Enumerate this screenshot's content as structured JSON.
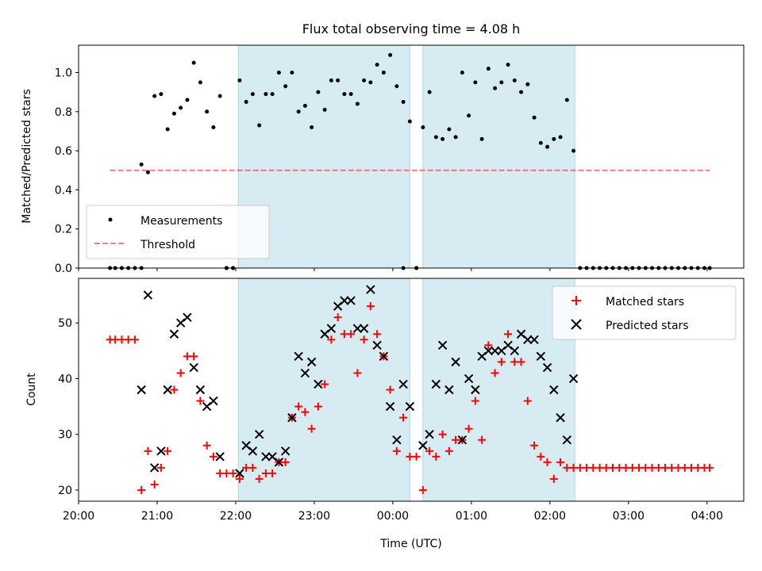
{
  "title": "Flux total observing time = 4.08 h",
  "colors": {
    "span": "#add8e6",
    "measurement": "#000000",
    "threshold": "#ff0000",
    "matched": "#ff0000",
    "predicted": "#000000"
  },
  "chart_data": [
    {
      "type": "scatter",
      "ylabel": "Matched/Predicted stars",
      "xlim": [
        "20:00",
        "04:28"
      ],
      "ylim": [
        0,
        1.14
      ],
      "yticks": [
        0.0,
        0.2,
        0.4,
        0.6,
        0.8,
        1.0
      ],
      "ytick_labels": [
        "0.0",
        "0.2",
        "0.4",
        "0.6",
        "0.8",
        "1.0"
      ],
      "legend": {
        "placement": "lower-left",
        "items": [
          "Measurements",
          "Threshold"
        ]
      },
      "shaded_spans": [
        [
          "22:02",
          "00:13"
        ],
        [
          "00:23",
          "02:19"
        ]
      ],
      "threshold": {
        "name": "Threshold",
        "value": 0.5,
        "x_range": [
          "20:24",
          "04:02"
        ]
      },
      "series": [
        {
          "name": "Measurements",
          "marker": "dot",
          "x": [
            "20:24",
            "20:28",
            "20:33",
            "20:38",
            "20:43",
            "20:48",
            "20:53",
            "20:58",
            "21:03",
            "21:08",
            "21:13",
            "21:18",
            "21:23",
            "21:28",
            "21:33",
            "21:38",
            "21:43",
            "21:48",
            "21:53",
            "21:58",
            "22:03",
            "22:08",
            "22:13",
            "22:18",
            "22:23",
            "22:28",
            "22:33",
            "22:38",
            "22:43",
            "22:48",
            "22:53",
            "22:58",
            "23:03",
            "23:08",
            "23:13",
            "23:18",
            "23:23",
            "23:28",
            "23:33",
            "23:38",
            "23:43",
            "23:48",
            "23:53",
            "23:58",
            "00:03",
            "00:08",
            "00:13",
            "00:18",
            "00:23",
            "00:28",
            "00:33",
            "00:38",
            "00:43",
            "00:48",
            "00:53",
            "00:58",
            "01:03",
            "01:08",
            "01:13",
            "01:18",
            "01:23",
            "01:28",
            "01:33",
            "01:38",
            "01:43",
            "01:48",
            "01:53",
            "01:58",
            "02:03",
            "02:08",
            "02:13",
            "02:18",
            "02:23",
            "02:28",
            "02:33",
            "02:38",
            "02:43",
            "02:48",
            "02:53",
            "02:58",
            "03:03",
            "03:08",
            "03:13",
            "03:18",
            "03:23",
            "03:28",
            "03:33",
            "03:38",
            "03:43",
            "03:48",
            "03:53",
            "03:58",
            "04:02",
            "20:48",
            "21:53",
            "21:58",
            "00:08",
            "00:18"
          ],
          "y": [
            0,
            0,
            0,
            0,
            0,
            0.53,
            0.49,
            0.88,
            0.89,
            0.71,
            0.79,
            0.82,
            0.86,
            1.05,
            0.95,
            0.8,
            0.72,
            0.88,
            0,
            0,
            0.96,
            0.85,
            0.89,
            0.73,
            0.89,
            0.89,
            1.0,
            0.93,
            1.0,
            0.8,
            0.83,
            0.72,
            0.9,
            0.81,
            0.96,
            0.96,
            0.89,
            0.89,
            0.84,
            0.96,
            0.95,
            1.04,
            1.0,
            1.09,
            0.93,
            0.85,
            0.75,
            0,
            0.72,
            0.9,
            0.67,
            0.66,
            0.71,
            0.67,
            1.0,
            0.78,
            0.95,
            0.66,
            1.02,
            0.92,
            0.95,
            1.04,
            0.96,
            0.9,
            0.94,
            0.77,
            0.64,
            0.62,
            0.66,
            0.67,
            0.86,
            0.6,
            0,
            0,
            0,
            0,
            0,
            0,
            0,
            0,
            0,
            0,
            0,
            0,
            0,
            0,
            0,
            0,
            0,
            0,
            0,
            0,
            0,
            0,
            0,
            0,
            0,
            0
          ]
        }
      ]
    },
    {
      "type": "scatter",
      "xlabel": "Time (UTC)",
      "ylabel": "Count",
      "xlim": [
        "20:00",
        "04:28"
      ],
      "ylim": [
        18,
        58
      ],
      "yticks": [
        20,
        30,
        40,
        50
      ],
      "ytick_labels": [
        "20",
        "30",
        "40",
        "50"
      ],
      "xticks": [
        "20:00",
        "21:00",
        "22:00",
        "23:00",
        "00:00",
        "01:00",
        "02:00",
        "03:00",
        "04:00"
      ],
      "legend": {
        "placement": "upper-right",
        "items": [
          "Matched stars",
          "Predicted stars"
        ]
      },
      "shaded_spans": [
        [
          "22:02",
          "00:13"
        ],
        [
          "00:23",
          "02:19"
        ]
      ],
      "series": [
        {
          "name": "Matched stars",
          "marker": "plus",
          "x": [
            "20:24",
            "20:28",
            "20:33",
            "20:38",
            "20:43",
            "20:48",
            "20:53",
            "20:58",
            "21:03",
            "21:08",
            "21:13",
            "21:18",
            "21:23",
            "21:28",
            "21:33",
            "21:38",
            "21:43",
            "21:48",
            "21:53",
            "21:58",
            "22:03",
            "22:08",
            "22:13",
            "22:18",
            "22:23",
            "22:28",
            "22:33",
            "22:38",
            "22:43",
            "22:48",
            "22:53",
            "22:58",
            "23:03",
            "23:08",
            "23:13",
            "23:18",
            "23:23",
            "23:28",
            "23:33",
            "23:38",
            "23:43",
            "23:48",
            "23:53",
            "23:58",
            "00:03",
            "00:08",
            "00:13",
            "00:18",
            "00:23",
            "00:28",
            "00:33",
            "00:38",
            "00:43",
            "00:48",
            "00:53",
            "00:58",
            "01:03",
            "01:08",
            "01:13",
            "01:18",
            "01:23",
            "01:28",
            "01:33",
            "01:38",
            "01:43",
            "01:48",
            "01:53",
            "01:58",
            "02:03",
            "02:08",
            "02:13",
            "02:18",
            "02:23",
            "02:28",
            "02:33",
            "02:38",
            "02:43",
            "02:48",
            "02:53",
            "02:58",
            "03:03",
            "03:08",
            "03:13",
            "03:18",
            "03:23",
            "03:28",
            "03:33",
            "03:38",
            "03:43",
            "03:48",
            "03:53",
            "03:58",
            "04:02"
          ],
          "y": [
            47,
            47,
            47,
            47,
            47,
            20,
            27,
            21,
            24,
            27,
            38,
            41,
            44,
            44,
            36,
            28,
            26,
            23,
            23,
            23,
            22,
            24,
            24,
            22,
            23,
            23,
            25,
            25,
            33,
            35,
            34,
            31,
            35,
            39,
            47,
            51,
            48,
            48,
            41,
            47,
            53,
            48,
            44,
            38,
            27,
            33,
            26,
            26,
            20,
            27,
            26,
            30,
            27,
            29,
            29,
            31,
            36,
            29,
            46,
            41,
            43,
            48,
            43,
            43,
            36,
            28,
            26,
            25,
            22,
            25,
            24,
            24,
            24,
            24,
            24,
            24,
            24,
            24,
            24,
            24,
            24,
            24,
            24,
            24,
            24,
            24,
            24,
            24,
            24,
            24,
            24,
            24,
            24
          ]
        },
        {
          "name": "Predicted stars",
          "marker": "x",
          "x": [
            "20:48",
            "20:53",
            "20:58",
            "21:03",
            "21:08",
            "21:13",
            "21:18",
            "21:23",
            "21:28",
            "21:33",
            "21:38",
            "21:43",
            "21:48",
            "22:03",
            "22:08",
            "22:13",
            "22:18",
            "22:23",
            "22:28",
            "22:33",
            "22:38",
            "22:43",
            "22:48",
            "22:53",
            "22:58",
            "23:03",
            "23:08",
            "23:13",
            "23:18",
            "23:23",
            "23:28",
            "23:33",
            "23:38",
            "23:43",
            "23:48",
            "23:53",
            "23:58",
            "00:03",
            "00:08",
            "00:13",
            "00:23",
            "00:28",
            "00:33",
            "00:38",
            "00:43",
            "00:48",
            "00:53",
            "00:58",
            "01:03",
            "01:08",
            "01:13",
            "01:18",
            "01:23",
            "01:28",
            "01:33",
            "01:38",
            "01:43",
            "01:48",
            "01:53",
            "01:58",
            "02:03",
            "02:08",
            "02:13",
            "02:18"
          ],
          "y": [
            38,
            55,
            24,
            27,
            38,
            48,
            50,
            51,
            42,
            38,
            35,
            36,
            26,
            23,
            28,
            27,
            30,
            26,
            26,
            25,
            27,
            33,
            44,
            41,
            43,
            39,
            48,
            49,
            53,
            54,
            54,
            49,
            49,
            56,
            46,
            44,
            35,
            29,
            39,
            35,
            28,
            30,
            39,
            46,
            38,
            43,
            29,
            40,
            38,
            44,
            45,
            45,
            45,
            46,
            45,
            48,
            47,
            47,
            44,
            42,
            38,
            33,
            29,
            40
          ]
        }
      ]
    }
  ]
}
